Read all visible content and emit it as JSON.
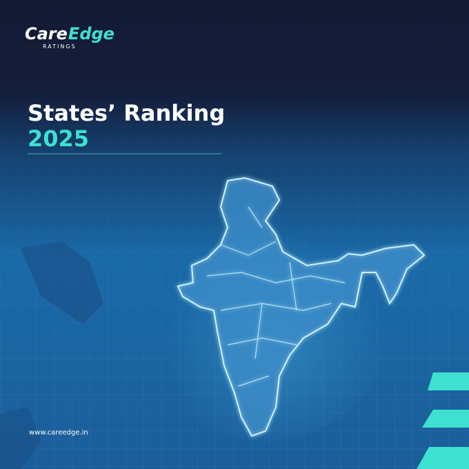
{
  "logo": {
    "brand_part1": "Care",
    "brand_part2": "Edge",
    "tagline": "RATINGS"
  },
  "header": {
    "title": "States’ Ranking",
    "year": "2025"
  },
  "footer": {
    "website": "www.careedge.in"
  }
}
